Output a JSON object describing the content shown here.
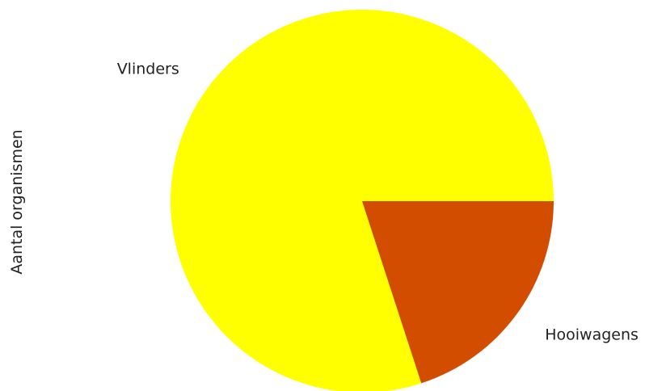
{
  "chart_data": {
    "type": "pie",
    "title": "",
    "ylabel": "Aantal organismen",
    "categories": [
      "Vlinders",
      "Hooiwagens"
    ],
    "values": [
      80,
      20
    ],
    "colors": [
      "#ffff00",
      "#d24d00"
    ],
    "start_angle_deg": 0,
    "direction": "counterclockwise",
    "legend": "none"
  }
}
